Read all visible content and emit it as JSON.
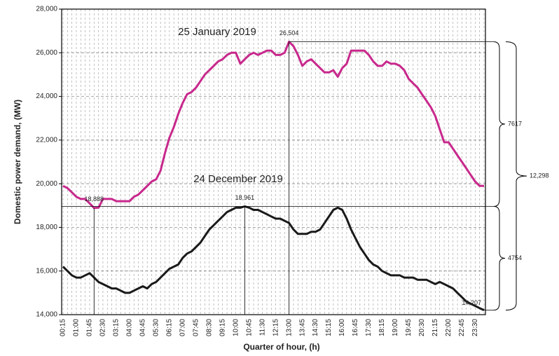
{
  "chart_data": {
    "type": "line",
    "xlabel": "Quarter of hour, (h)",
    "ylabel": "Domestic power demand, (MW)",
    "categories": [
      "00:15",
      null,
      null,
      "01:00",
      null,
      null,
      "01:45",
      null,
      null,
      "02:30",
      null,
      null,
      "03:15",
      null,
      null,
      "04:00",
      null,
      null,
      "04:45",
      null,
      null,
      "05:30",
      null,
      null,
      "06:15",
      null,
      null,
      "07:00",
      null,
      null,
      "07:45",
      null,
      null,
      "08:30",
      null,
      null,
      "09:15",
      null,
      null,
      "10:00",
      null,
      null,
      "10:45",
      null,
      null,
      "11:30",
      null,
      null,
      "12:15",
      null,
      null,
      "13:00",
      null,
      null,
      "13:45",
      null,
      null,
      "14:30",
      null,
      null,
      "15:15",
      null,
      null,
      "16:00",
      null,
      null,
      "16:45",
      null,
      null,
      "17:30",
      null,
      null,
      "18:15",
      null,
      null,
      "19:00",
      null,
      null,
      "19:45",
      null,
      null,
      "20:30",
      null,
      null,
      "21:15",
      null,
      null,
      "22:00",
      null,
      null,
      "22:45",
      null,
      null,
      "23:30",
      null,
      null
    ],
    "series": [
      {
        "name": "25 January 2019",
        "color": "#c8288c",
        "values": [
          19900,
          19800,
          19600,
          19400,
          19300,
          19300,
          19100,
          18888,
          18900,
          19300,
          19300,
          19300,
          19200,
          19200,
          19200,
          19200,
          19400,
          19500,
          19700,
          19900,
          20100,
          20200,
          20600,
          21400,
          22100,
          22600,
          23200,
          23700,
          24100,
          24200,
          24400,
          24700,
          25000,
          25200,
          25400,
          25600,
          25700,
          25900,
          26000,
          26000,
          25500,
          25700,
          25900,
          26000,
          25900,
          26000,
          26100,
          26100,
          25900,
          25900,
          26000,
          26504,
          26300,
          25900,
          25400,
          25600,
          25700,
          25500,
          25300,
          25100,
          25100,
          25200,
          24900,
          25300,
          25500,
          26100,
          26100,
          26100,
          26100,
          25900,
          25600,
          25400,
          25400,
          25600,
          25500,
          25500,
          25400,
          25200,
          24800,
          24600,
          24400,
          24100,
          23800,
          23500,
          23100,
          22500,
          21900,
          21900,
          21600,
          21300,
          21000,
          20700,
          20400,
          20100,
          19900,
          19900
        ],
        "value_labels": [
          null,
          null,
          null,
          null,
          null,
          null,
          null,
          "18,888",
          null,
          null,
          null,
          null,
          null,
          null,
          null,
          null,
          null,
          null,
          null,
          null,
          null,
          null,
          null,
          null,
          null,
          null,
          null,
          null,
          null,
          null,
          null,
          null,
          null,
          null,
          null,
          null,
          null,
          null,
          null,
          null,
          null,
          null,
          null,
          null,
          null,
          null,
          null,
          null,
          null,
          null,
          null,
          "26,504",
          null,
          null,
          null,
          null,
          null,
          null,
          null,
          null,
          null,
          null,
          null,
          null,
          null,
          null,
          null,
          null,
          null,
          null,
          null,
          null,
          null,
          null,
          null,
          null,
          null,
          null,
          null,
          null,
          null,
          null,
          null,
          null,
          null,
          null,
          null,
          null,
          null,
          null,
          null,
          null,
          null,
          null,
          null,
          null
        ]
      },
      {
        "name": "24 December 2019",
        "color": "#1a1a1a",
        "values": [
          16200,
          16000,
          15800,
          15700,
          15700,
          15800,
          15900,
          15700,
          15500,
          15400,
          15300,
          15200,
          15200,
          15100,
          15000,
          15000,
          15100,
          15200,
          15300,
          15200,
          15400,
          15500,
          15700,
          15900,
          16100,
          16200,
          16300,
          16600,
          16800,
          16900,
          17100,
          17300,
          17600,
          17900,
          18100,
          18300,
          18500,
          18700,
          18800,
          18900,
          18900,
          18961,
          18900,
          18800,
          18800,
          18700,
          18600,
          18500,
          18400,
          18400,
          18300,
          18200,
          17900,
          17700,
          17700,
          17700,
          17800,
          17800,
          17900,
          18200,
          18500,
          18800,
          18900,
          18800,
          18400,
          17900,
          17500,
          17100,
          16800,
          16500,
          16300,
          16200,
          16000,
          15900,
          15800,
          15800,
          15800,
          15700,
          15700,
          15700,
          15600,
          15600,
          15600,
          15500,
          15400,
          15500,
          15400,
          15300,
          15200,
          15000,
          14800,
          14600,
          14500,
          14400,
          14300,
          14207
        ],
        "value_labels": [
          null,
          null,
          null,
          null,
          null,
          null,
          null,
          null,
          null,
          null,
          null,
          null,
          null,
          null,
          null,
          null,
          null,
          null,
          null,
          null,
          null,
          null,
          null,
          null,
          null,
          null,
          null,
          null,
          null,
          null,
          null,
          null,
          null,
          null,
          null,
          null,
          null,
          null,
          null,
          null,
          null,
          "18,961",
          null,
          null,
          null,
          null,
          null,
          null,
          null,
          null,
          null,
          null,
          null,
          null,
          null,
          null,
          null,
          null,
          null,
          null,
          null,
          null,
          null,
          null,
          null,
          null,
          null,
          null,
          null,
          null,
          null,
          null,
          null,
          null,
          null,
          null,
          null,
          null,
          null,
          null,
          null,
          null,
          null,
          null,
          null,
          null,
          null,
          null,
          null,
          null,
          null,
          null,
          null,
          null,
          null,
          "14,207"
        ]
      }
    ],
    "annotations": [
      "7617",
      "4754",
      "12,298"
    ],
    "ylim": [
      14000,
      28000
    ],
    "yticks": [
      {
        "value": 14000,
        "label": "14,000"
      },
      {
        "value": 16000,
        "label": "16,000"
      },
      {
        "value": 18000,
        "label": "18,000"
      },
      {
        "value": 20000,
        "label": "20,000"
      },
      {
        "value": 22000,
        "label": "22,000"
      },
      {
        "value": 24000,
        "label": "24,000"
      },
      {
        "value": 26000,
        "label": "26,000"
      },
      {
        "value": 28000,
        "label": "28,000"
      }
    ],
    "grid": true
  }
}
